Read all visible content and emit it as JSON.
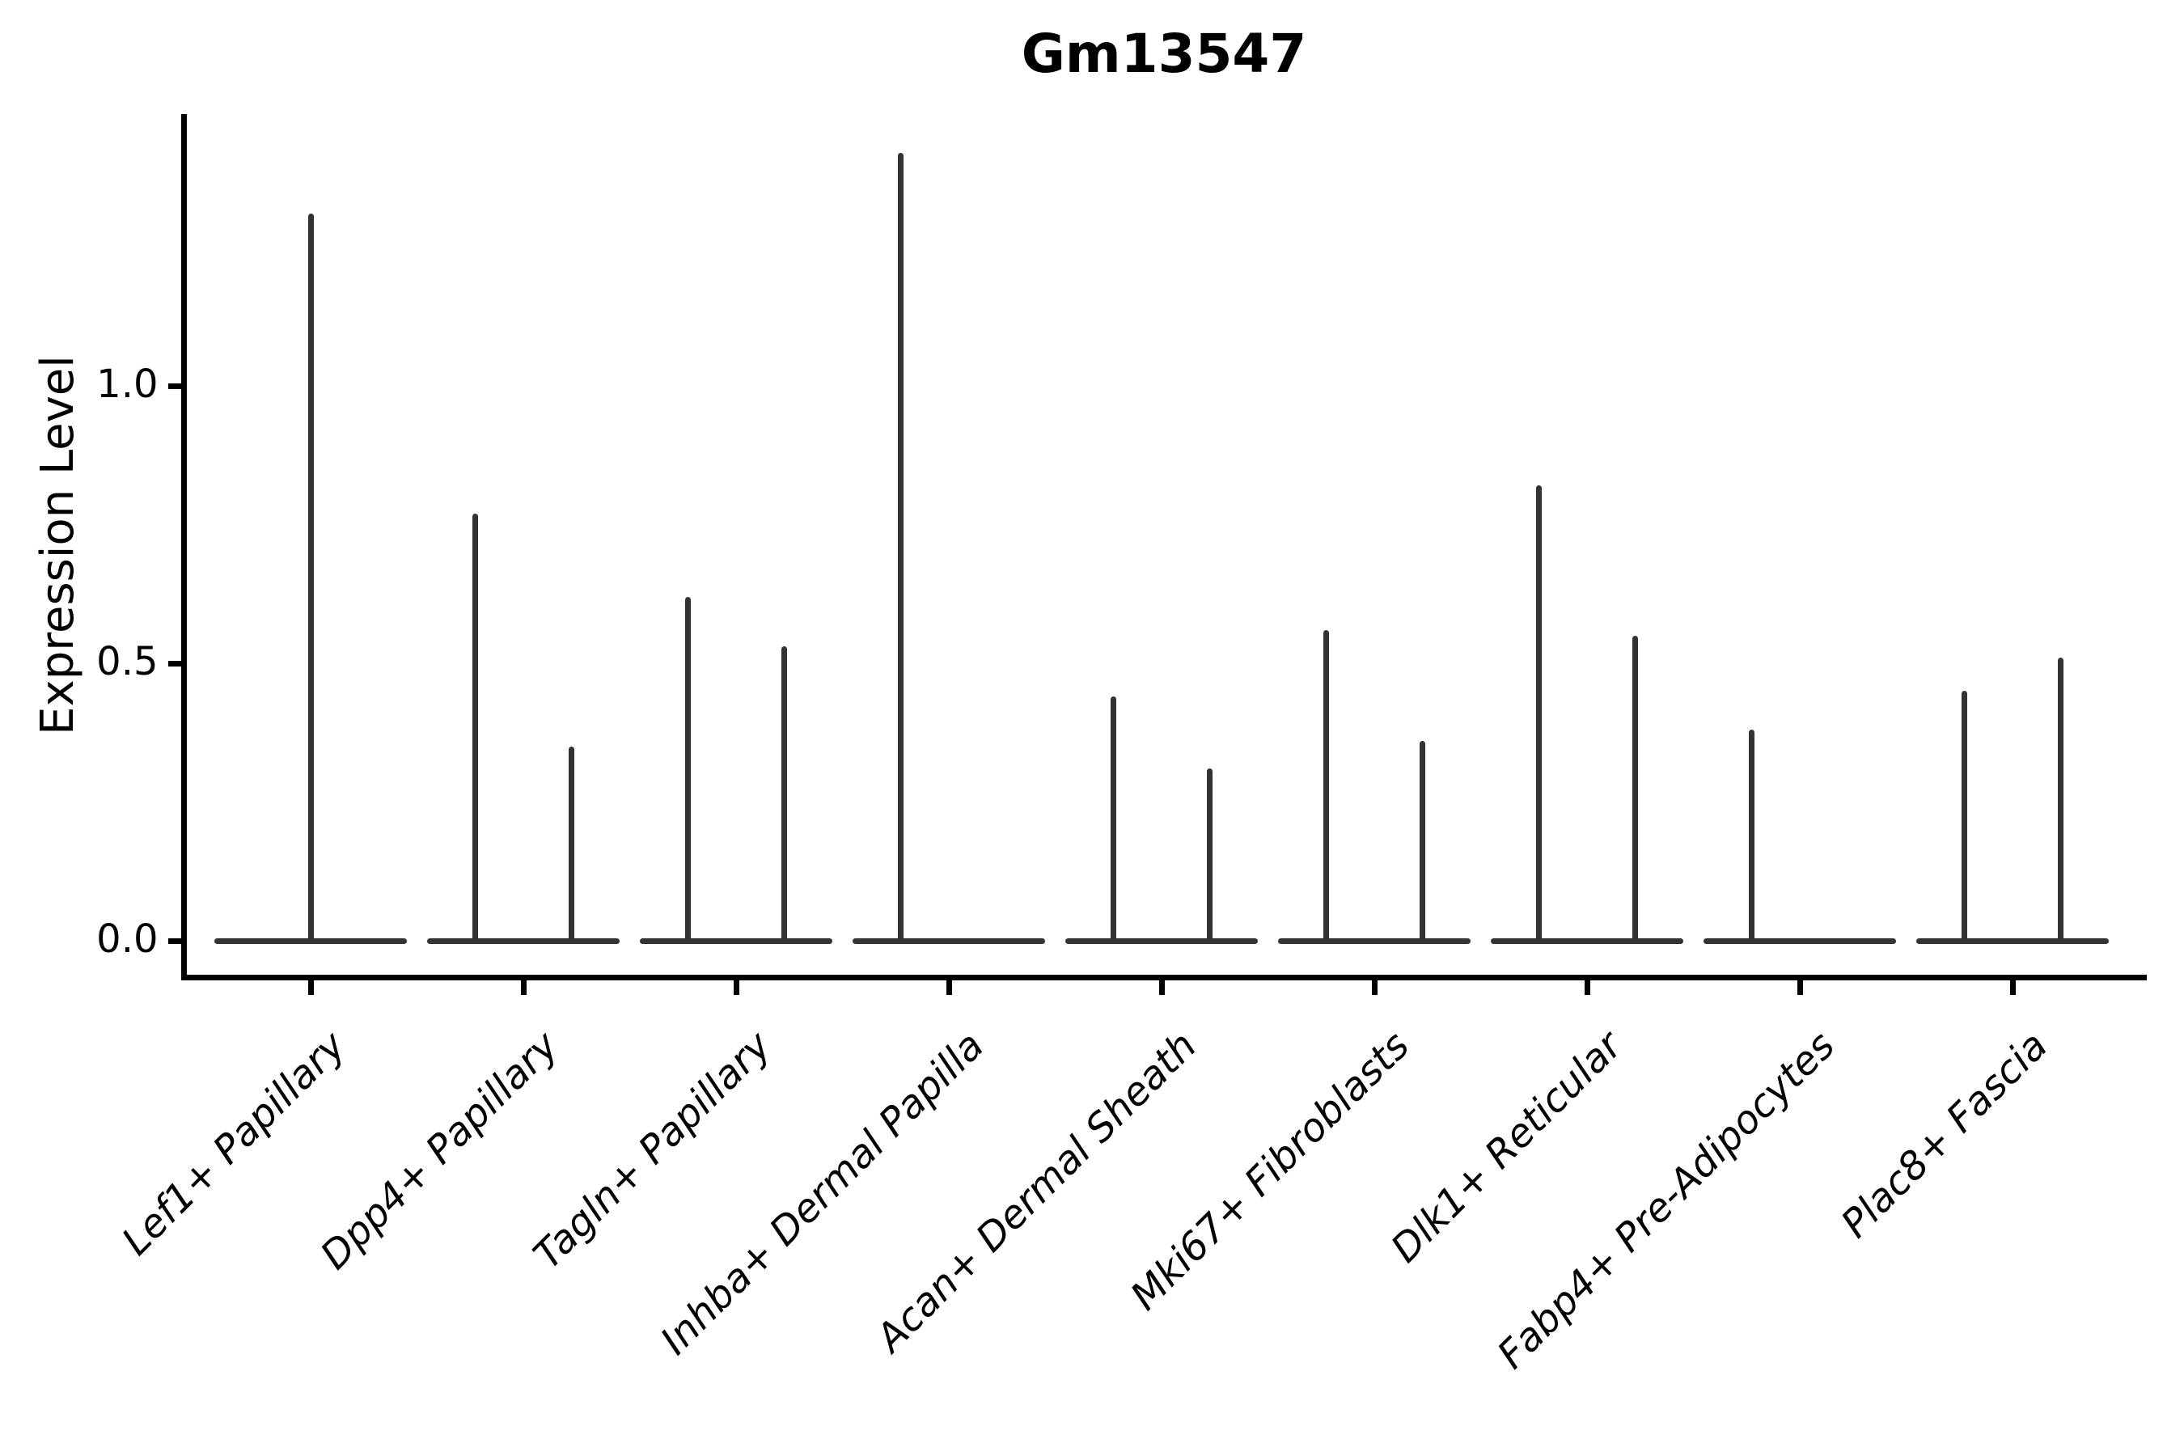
{
  "chart_data": {
    "type": "violin",
    "title": "Gm13547",
    "xlabel": "",
    "ylabel": "Expression Level",
    "yticks": [
      "0.0",
      "0.5",
      "1.0"
    ],
    "ylim": [
      0,
      1.49
    ],
    "grid": false,
    "legend": "none",
    "categories": [
      "Lef1+ Papillary",
      "Dpp4+ Papillary",
      "Tagln+ Papillary",
      "Inhba+ Dermal Papilla",
      "Acan+ Dermal Sheath",
      "Mki67+ Fibroblasts",
      "Dlk1+ Reticular",
      "Fabp4+ Pre-Adipocytes",
      "Plac8+ Fascia"
    ],
    "violins": [
      {
        "category": "Lef1+ Papillary",
        "baseline_value": 0,
        "spikes": [
          {
            "offset": 0,
            "max": 1.31
          }
        ]
      },
      {
        "category": "Dpp4+ Papillary",
        "baseline_value": 0,
        "spikes": [
          {
            "offset": -0.25,
            "max": 0.77
          },
          {
            "offset": 0.25,
            "max": 0.35
          }
        ]
      },
      {
        "category": "Tagln+ Papillary",
        "baseline_value": 0,
        "spikes": [
          {
            "offset": -0.25,
            "max": 0.62
          },
          {
            "offset": 0.25,
            "max": 0.53
          }
        ]
      },
      {
        "category": "Inhba+ Dermal Papilla",
        "baseline_value": 0,
        "spikes": [
          {
            "offset": -0.25,
            "max": 1.42
          }
        ]
      },
      {
        "category": "Acan+ Dermal Sheath",
        "baseline_value": 0,
        "spikes": [
          {
            "offset": -0.25,
            "max": 0.44
          },
          {
            "offset": 0.25,
            "max": 0.31
          }
        ]
      },
      {
        "category": "Mki67+ Fibroblasts",
        "baseline_value": 0,
        "spikes": [
          {
            "offset": -0.25,
            "max": 0.56
          },
          {
            "offset": 0.25,
            "max": 0.36
          }
        ]
      },
      {
        "category": "Dlk1+ Reticular",
        "baseline_value": 0,
        "spikes": [
          {
            "offset": -0.25,
            "max": 0.82
          },
          {
            "offset": 0.25,
            "max": 0.55
          }
        ]
      },
      {
        "category": "Fabp4+ Pre-Adipocytes",
        "baseline_value": 0,
        "spikes": [
          {
            "offset": -0.25,
            "max": 0.38
          }
        ]
      },
      {
        "category": "Plac8+ Fascia",
        "baseline_value": 0,
        "spikes": [
          {
            "offset": -0.25,
            "max": 0.45
          },
          {
            "offset": 0.25,
            "max": 0.51
          }
        ]
      }
    ],
    "colors": {
      "violin": "#333333",
      "axis": "#000000",
      "text": "#000000",
      "background": "#ffffff"
    }
  }
}
